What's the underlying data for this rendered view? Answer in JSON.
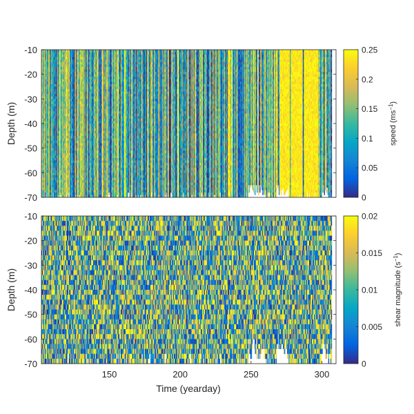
{
  "chart_data": [
    {
      "type": "heatmap",
      "title": "",
      "xlabel": "",
      "ylabel": "Depth (m)",
      "xlim": [
        102,
        310
      ],
      "ylim": [
        -70,
        -10
      ],
      "x_ticks": [],
      "y_ticks": [
        -10,
        -20,
        -30,
        -40,
        -50,
        -60,
        -70
      ],
      "colorbar": {
        "label_main": "speed (ms",
        "label_sup": "−1",
        "label_end": ")",
        "range": [
          0,
          0.25
        ],
        "ticks": [
          0,
          0.05,
          0.1,
          0.15,
          0.2,
          0.25
        ],
        "tick_labels": [
          "0",
          "0.05",
          "0.1",
          "0.15",
          "0.2",
          "0.25"
        ]
      },
      "columns": {
        "x_start": 102,
        "x_end": 310,
        "bin_width_days": 0.5,
        "depth_bin_m": 1,
        "data_end_day": 307,
        "bottom_data_gap_days": [
          [
            248,
            260
          ],
          [
            268,
            276
          ],
          [
            300,
            304
          ]
        ],
        "bright_bands_days": [
          [
            270,
            277
          ],
          [
            278,
            283
          ],
          [
            284,
            286
          ],
          [
            288,
            297
          ]
        ]
      },
      "mean_level": 0.1
    },
    {
      "type": "heatmap",
      "title": "",
      "xlabel": "Time (yearday)",
      "ylabel": "Depth (m)",
      "xlim": [
        102,
        310
      ],
      "ylim": [
        -70,
        -10
      ],
      "x_ticks": [
        150,
        200,
        250,
        300
      ],
      "y_ticks": [
        -10,
        -20,
        -30,
        -40,
        -50,
        -60,
        -70
      ],
      "colorbar": {
        "label_main": "shear magnitude (s",
        "label_sup": "−1",
        "label_end": ")",
        "range": [
          0,
          0.02
        ],
        "ticks": [
          0,
          0.005,
          0.01,
          0.015,
          0.02
        ],
        "tick_labels": [
          "0",
          "0.005",
          "0.01",
          "0.015",
          "0.02"
        ]
      },
      "columns": {
        "x_start": 102,
        "x_end": 310,
        "bin_width_days": 0.5,
        "depth_bin_m": 2,
        "data_end_day": 307,
        "bottom_data_gap_days": [
          [
            248,
            260
          ],
          [
            268,
            276
          ],
          [
            300,
            304
          ]
        ],
        "bright_bands_days": []
      },
      "mean_level": 0.009
    }
  ],
  "colormap": {
    "name": "parula",
    "stops": [
      "#352a87",
      "#0363e1",
      "#1485d4",
      "#06a7c6",
      "#38b99e",
      "#92bf73",
      "#d9ba56",
      "#fcce2e",
      "#f9fb0e"
    ]
  },
  "axis_color": "#262626"
}
